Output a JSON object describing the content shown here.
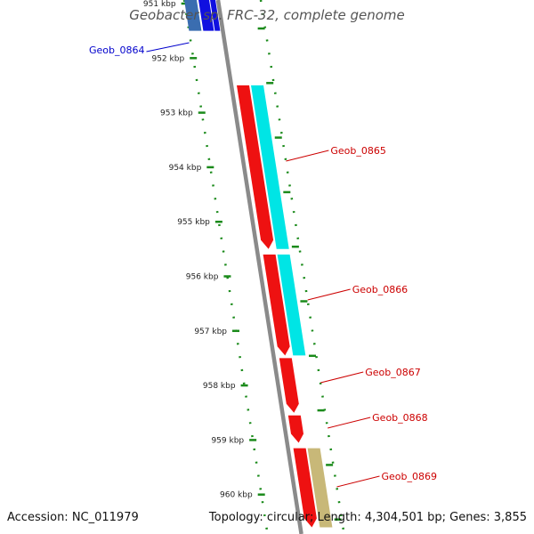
{
  "title": "Geobacter sp. FRC-32, complete genome",
  "footer": {
    "accession": "Accession: NC_011979",
    "summary": "Topology: circular; Length: 4,304,501 bp; Genes: 3,855"
  },
  "scale": {
    "ticks": [
      "951 kbp",
      "952 kbp",
      "953 kbp",
      "954 kbp",
      "955 kbp",
      "956 kbp",
      "957 kbp",
      "958 kbp",
      "959 kbp",
      "960 kbp"
    ]
  },
  "genes": [
    {
      "name": "Geob_0864",
      "start_kbp": 950.9,
      "end_kbp": 951.5,
      "strand": "minus",
      "color": "#1010e0",
      "outer_color": "#3a6db0",
      "label_color": "#0000cc"
    },
    {
      "name": "Geob_0865",
      "start_kbp": 952.5,
      "end_kbp": 955.5,
      "strand": "plus",
      "color": "#ee1111",
      "outer_color": "#00e5e5",
      "label_color": "#cc0000"
    },
    {
      "name": "Geob_0866",
      "start_kbp": 955.6,
      "end_kbp": 957.45,
      "strand": "plus",
      "color": "#ee1111",
      "outer_color": "#00e5e5",
      "label_color": "#cc0000"
    },
    {
      "name": "Geob_0867",
      "start_kbp": 957.5,
      "end_kbp": 958.5,
      "strand": "plus",
      "color": "#ee1111",
      "outer_color": "",
      "label_color": "#cc0000"
    },
    {
      "name": "Geob_0868",
      "start_kbp": 958.55,
      "end_kbp": 959.05,
      "strand": "plus",
      "color": "#ee1111",
      "outer_color": "",
      "label_color": "#cc0000"
    },
    {
      "name": "Geob_0869",
      "start_kbp": 959.15,
      "end_kbp": 960.6,
      "strand": "plus",
      "color": "#ee1111",
      "outer_color": "#c8b878",
      "label_color": "#cc0000"
    }
  ],
  "colors": {
    "backbone": "#8a8a8a",
    "tick": "#1a8a1a",
    "tick_label": "#222222"
  }
}
